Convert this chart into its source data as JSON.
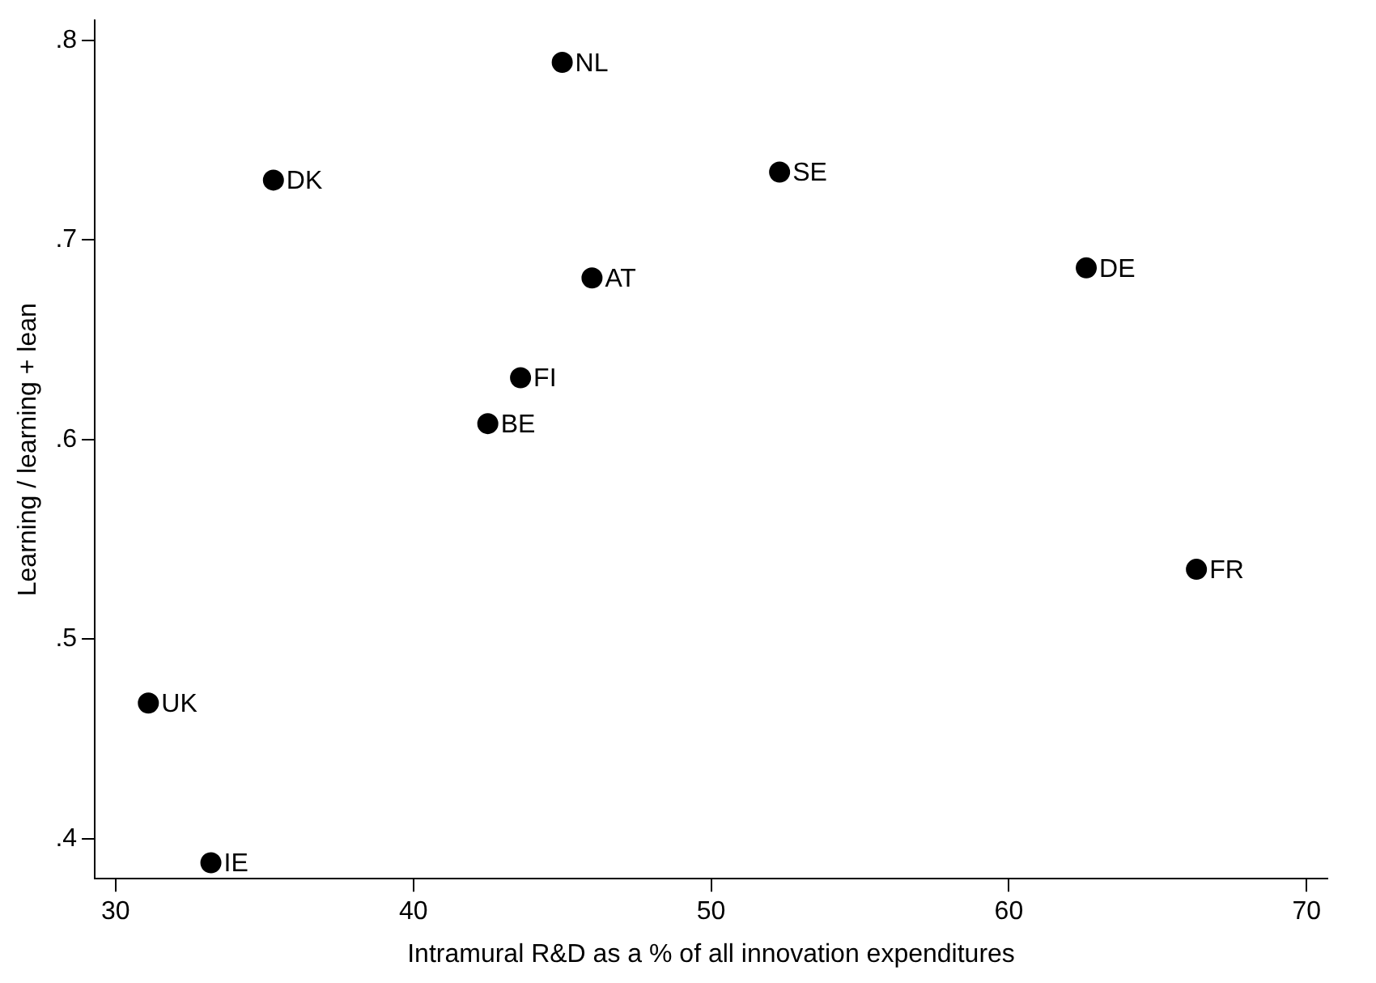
{
  "chart_data": {
    "type": "scatter",
    "xlabel": "Intramural R&D as a % of all innovation expenditures",
    "ylabel": "Learning / learning + lean",
    "xlim": [
      29.3,
      70.7
    ],
    "ylim": [
      0.38,
      0.81
    ],
    "xticks": [
      30,
      40,
      50,
      60,
      70
    ],
    "yticks": [
      {
        "value": 0.4,
        "label": ".4"
      },
      {
        "value": 0.5,
        "label": ".5"
      },
      {
        "value": 0.6,
        "label": ".6"
      },
      {
        "value": 0.7,
        "label": ".7"
      },
      {
        "value": 0.8,
        "label": ".8"
      }
    ],
    "grid": false,
    "legend": false,
    "marker": "circle",
    "series": [
      {
        "name": "NL",
        "color": "#000000",
        "x": [
          45
        ],
        "values": [
          0.789
        ]
      },
      {
        "name": "DK",
        "color": "#000000",
        "x": [
          35.3
        ],
        "values": [
          0.73
        ]
      },
      {
        "name": "SE",
        "color": "#000000",
        "x": [
          52.3
        ],
        "values": [
          0.734
        ]
      },
      {
        "name": "AT",
        "color": "#000000",
        "x": [
          46
        ],
        "values": [
          0.681
        ]
      },
      {
        "name": "DE",
        "color": "#000000",
        "x": [
          62.6
        ],
        "values": [
          0.686
        ]
      },
      {
        "name": "FI",
        "color": "#000000",
        "x": [
          43.6
        ],
        "values": [
          0.631
        ]
      },
      {
        "name": "BE",
        "color": "#000000",
        "x": [
          42.5
        ],
        "values": [
          0.608
        ]
      },
      {
        "name": "FR",
        "color": "#000000",
        "x": [
          66.3
        ],
        "values": [
          0.535
        ]
      },
      {
        "name": "UK",
        "color": "#000000",
        "x": [
          31.1
        ],
        "values": [
          0.468
        ]
      },
      {
        "name": "IE",
        "color": "#000000",
        "x": [
          33.2
        ],
        "values": [
          0.388
        ]
      }
    ]
  }
}
